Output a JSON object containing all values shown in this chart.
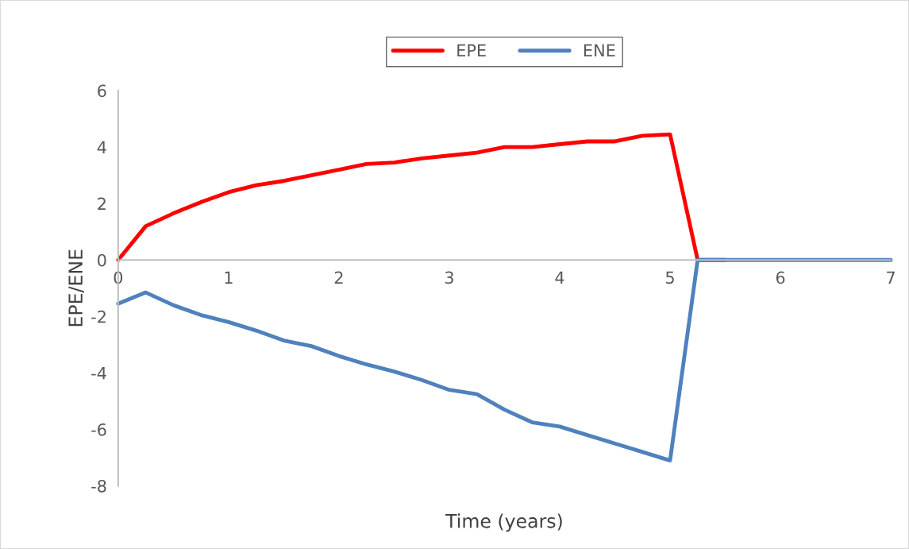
{
  "chart_data": {
    "type": "line",
    "xlabel": "Time (years)",
    "ylabel": "EPE/ENE",
    "x": [
      0,
      0.25,
      0.5,
      0.75,
      1,
      1.25,
      1.5,
      1.75,
      2,
      2.25,
      2.5,
      2.75,
      3,
      3.25,
      3.5,
      3.75,
      4,
      4.25,
      4.5,
      4.75,
      5,
      5.25,
      5.5,
      5.75,
      6,
      6.25,
      6.5,
      6.75,
      7
    ],
    "series": [
      {
        "name": "EPE",
        "color": "#ff0000",
        "values": [
          0,
          1.2,
          1.65,
          2.05,
          2.4,
          2.65,
          2.8,
          3.0,
          3.2,
          3.4,
          3.45,
          3.6,
          3.7,
          3.8,
          4.0,
          4.0,
          4.1,
          4.2,
          4.2,
          4.4,
          4.45,
          0,
          0,
          null,
          null,
          null,
          null,
          null,
          null
        ]
      },
      {
        "name": "ENE",
        "color": "#4f81bd",
        "values": [
          -1.55,
          -1.15,
          -1.6,
          -1.95,
          -2.2,
          -2.5,
          -2.85,
          -3.05,
          -3.4,
          -3.7,
          -3.95,
          -4.25,
          -4.6,
          -4.75,
          -5.3,
          -5.75,
          -5.9,
          -6.2,
          -6.5,
          -6.8,
          -7.1,
          0,
          0,
          0,
          0,
          0,
          0,
          0,
          0
        ]
      }
    ],
    "xlim": [
      0,
      7
    ],
    "xticks": [
      0,
      1,
      2,
      3,
      4,
      5,
      6,
      7
    ],
    "ylim": [
      -8,
      6
    ],
    "yticks": [
      -8,
      -6,
      -4,
      -2,
      0,
      2,
      4,
      6
    ],
    "grid": false,
    "legend": "top",
    "marker": "none",
    "line_style": "solid"
  }
}
